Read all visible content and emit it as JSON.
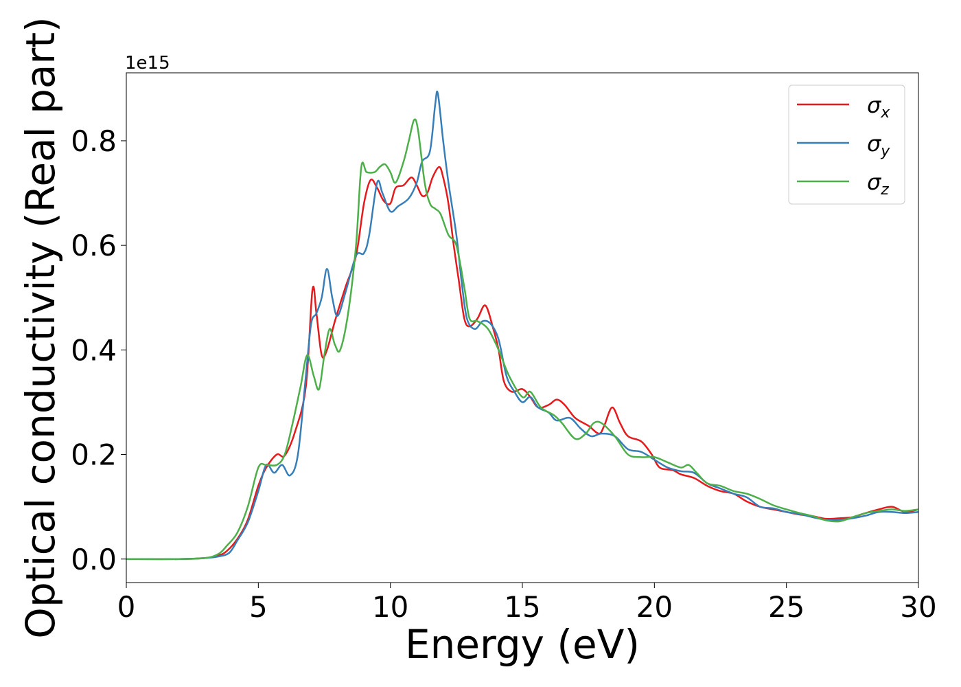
{
  "chart_data": {
    "type": "line",
    "title": "",
    "xlabel": "Energy (eV)",
    "ylabel": "Optical conductivity (Real part)",
    "offset_text": "1e15",
    "xlim": [
      0,
      30
    ],
    "ylim": [
      -0.045,
      0.93
    ],
    "xticks": [
      0,
      5,
      10,
      15,
      20,
      25,
      30
    ],
    "xtick_labels": [
      "0",
      "5",
      "10",
      "15",
      "20",
      "25",
      "30"
    ],
    "yticks": [
      0.0,
      0.2,
      0.4,
      0.6,
      0.8
    ],
    "ytick_labels": [
      "0.0",
      "0.2",
      "0.4",
      "0.6",
      "0.8"
    ],
    "grid": false,
    "legend_position": "top-right",
    "series": [
      {
        "name": "σx",
        "legend_symbol": "σ",
        "legend_subscript": "x",
        "color": "#e41a1c",
        "points": [
          [
            0,
            0.0
          ],
          [
            2,
            0.0
          ],
          [
            3,
            0.002
          ],
          [
            3.5,
            0.007
          ],
          [
            3.8,
            0.015
          ],
          [
            4.2,
            0.038
          ],
          [
            4.6,
            0.075
          ],
          [
            5,
            0.14
          ],
          [
            5.3,
            0.175
          ],
          [
            5.7,
            0.2
          ],
          [
            6,
            0.198
          ],
          [
            6.4,
            0.245
          ],
          [
            6.8,
            0.33
          ],
          [
            7.05,
            0.515
          ],
          [
            7.2,
            0.47
          ],
          [
            7.4,
            0.39
          ],
          [
            7.6,
            0.4
          ],
          [
            7.9,
            0.455
          ],
          [
            8.3,
            0.52
          ],
          [
            8.7,
            0.58
          ],
          [
            9,
            0.68
          ],
          [
            9.25,
            0.725
          ],
          [
            9.5,
            0.71
          ],
          [
            9.75,
            0.685
          ],
          [
            10,
            0.68
          ],
          [
            10.2,
            0.71
          ],
          [
            10.5,
            0.715
          ],
          [
            10.8,
            0.73
          ],
          [
            11,
            0.715
          ],
          [
            11.2,
            0.695
          ],
          [
            11.4,
            0.7
          ],
          [
            11.6,
            0.73
          ],
          [
            11.85,
            0.75
          ],
          [
            12,
            0.73
          ],
          [
            12.2,
            0.68
          ],
          [
            12.4,
            0.6
          ],
          [
            12.6,
            0.53
          ],
          [
            12.8,
            0.46
          ],
          [
            13,
            0.445
          ],
          [
            13.3,
            0.46
          ],
          [
            13.6,
            0.485
          ],
          [
            13.9,
            0.44
          ],
          [
            14.1,
            0.4
          ],
          [
            14.3,
            0.34
          ],
          [
            14.6,
            0.32
          ],
          [
            15,
            0.325
          ],
          [
            15.3,
            0.31
          ],
          [
            15.6,
            0.29
          ],
          [
            16,
            0.295
          ],
          [
            16.3,
            0.305
          ],
          [
            16.6,
            0.295
          ],
          [
            17,
            0.27
          ],
          [
            17.5,
            0.255
          ],
          [
            17.9,
            0.24
          ],
          [
            18.1,
            0.255
          ],
          [
            18.4,
            0.29
          ],
          [
            18.7,
            0.26
          ],
          [
            19,
            0.235
          ],
          [
            19.5,
            0.225
          ],
          [
            19.9,
            0.2
          ],
          [
            20.2,
            0.175
          ],
          [
            20.7,
            0.17
          ],
          [
            21,
            0.162
          ],
          [
            21.5,
            0.155
          ],
          [
            22,
            0.14
          ],
          [
            22.5,
            0.13
          ],
          [
            23,
            0.125
          ],
          [
            23.5,
            0.11
          ],
          [
            24,
            0.1
          ],
          [
            24.5,
            0.095
          ],
          [
            25,
            0.09
          ],
          [
            25.5,
            0.085
          ],
          [
            26,
            0.082
          ],
          [
            26.5,
            0.077
          ],
          [
            27,
            0.078
          ],
          [
            27.5,
            0.08
          ],
          [
            28,
            0.088
          ],
          [
            28.5,
            0.095
          ],
          [
            29,
            0.1
          ],
          [
            29.5,
            0.09
          ],
          [
            30,
            0.095
          ]
        ]
      },
      {
        "name": "σy",
        "legend_symbol": "σ",
        "legend_subscript": "y",
        "color": "#377eb8",
        "points": [
          [
            0,
            0.0
          ],
          [
            2,
            0.0
          ],
          [
            3,
            0.002
          ],
          [
            3.5,
            0.005
          ],
          [
            3.9,
            0.012
          ],
          [
            4.2,
            0.035
          ],
          [
            4.6,
            0.07
          ],
          [
            5,
            0.13
          ],
          [
            5.3,
            0.18
          ],
          [
            5.6,
            0.165
          ],
          [
            5.9,
            0.18
          ],
          [
            6.2,
            0.16
          ],
          [
            6.5,
            0.2
          ],
          [
            6.8,
            0.35
          ],
          [
            7,
            0.45
          ],
          [
            7.2,
            0.47
          ],
          [
            7.4,
            0.5
          ],
          [
            7.6,
            0.555
          ],
          [
            7.8,
            0.5
          ],
          [
            8,
            0.465
          ],
          [
            8.3,
            0.51
          ],
          [
            8.7,
            0.58
          ],
          [
            9,
            0.585
          ],
          [
            9.2,
            0.62
          ],
          [
            9.5,
            0.72
          ],
          [
            9.7,
            0.7
          ],
          [
            10,
            0.665
          ],
          [
            10.3,
            0.675
          ],
          [
            10.7,
            0.69
          ],
          [
            11,
            0.72
          ],
          [
            11.2,
            0.76
          ],
          [
            11.5,
            0.78
          ],
          [
            11.7,
            0.87
          ],
          [
            11.8,
            0.89
          ],
          [
            12,
            0.8
          ],
          [
            12.2,
            0.72
          ],
          [
            12.5,
            0.62
          ],
          [
            12.7,
            0.53
          ],
          [
            12.9,
            0.46
          ],
          [
            13.2,
            0.44
          ],
          [
            13.5,
            0.455
          ],
          [
            13.8,
            0.45
          ],
          [
            14.1,
            0.42
          ],
          [
            14.4,
            0.35
          ],
          [
            14.7,
            0.32
          ],
          [
            15,
            0.3
          ],
          [
            15.3,
            0.31
          ],
          [
            15.6,
            0.29
          ],
          [
            16,
            0.28
          ],
          [
            16.3,
            0.265
          ],
          [
            16.8,
            0.27
          ],
          [
            17.2,
            0.25
          ],
          [
            17.6,
            0.235
          ],
          [
            18,
            0.24
          ],
          [
            18.5,
            0.235
          ],
          [
            19,
            0.21
          ],
          [
            19.5,
            0.205
          ],
          [
            20,
            0.19
          ],
          [
            20.5,
            0.175
          ],
          [
            21,
            0.168
          ],
          [
            21.5,
            0.165
          ],
          [
            22,
            0.145
          ],
          [
            22.5,
            0.135
          ],
          [
            23,
            0.125
          ],
          [
            23.5,
            0.118
          ],
          [
            24,
            0.1
          ],
          [
            24.5,
            0.097
          ],
          [
            25,
            0.09
          ],
          [
            25.5,
            0.086
          ],
          [
            26,
            0.08
          ],
          [
            26.5,
            0.075
          ],
          [
            27,
            0.075
          ],
          [
            27.5,
            0.078
          ],
          [
            28,
            0.083
          ],
          [
            28.5,
            0.09
          ],
          [
            29,
            0.09
          ],
          [
            29.5,
            0.088
          ],
          [
            30,
            0.09
          ]
        ]
      },
      {
        "name": "σz",
        "legend_symbol": "σ",
        "legend_subscript": "z",
        "color": "#4daf4a",
        "points": [
          [
            0,
            0.0
          ],
          [
            2,
            0.0
          ],
          [
            3,
            0.002
          ],
          [
            3.5,
            0.01
          ],
          [
            3.8,
            0.025
          ],
          [
            4.2,
            0.05
          ],
          [
            4.6,
            0.1
          ],
          [
            5,
            0.175
          ],
          [
            5.3,
            0.18
          ],
          [
            5.7,
            0.18
          ],
          [
            6,
            0.2
          ],
          [
            6.3,
            0.26
          ],
          [
            6.6,
            0.33
          ],
          [
            6.85,
            0.39
          ],
          [
            7.1,
            0.35
          ],
          [
            7.3,
            0.325
          ],
          [
            7.5,
            0.39
          ],
          [
            7.7,
            0.44
          ],
          [
            7.9,
            0.41
          ],
          [
            8.1,
            0.4
          ],
          [
            8.4,
            0.47
          ],
          [
            8.7,
            0.6
          ],
          [
            8.9,
            0.75
          ],
          [
            9.1,
            0.74
          ],
          [
            9.4,
            0.74
          ],
          [
            9.6,
            0.75
          ],
          [
            9.8,
            0.755
          ],
          [
            10,
            0.74
          ],
          [
            10.2,
            0.72
          ],
          [
            10.5,
            0.76
          ],
          [
            10.7,
            0.8
          ],
          [
            10.9,
            0.84
          ],
          [
            11.05,
            0.82
          ],
          [
            11.3,
            0.72
          ],
          [
            11.5,
            0.68
          ],
          [
            11.7,
            0.67
          ],
          [
            11.9,
            0.66
          ],
          [
            12.2,
            0.62
          ],
          [
            12.5,
            0.6
          ],
          [
            12.8,
            0.52
          ],
          [
            13,
            0.46
          ],
          [
            13.3,
            0.455
          ],
          [
            13.7,
            0.44
          ],
          [
            14.1,
            0.4
          ],
          [
            14.5,
            0.35
          ],
          [
            15,
            0.31
          ],
          [
            15.3,
            0.32
          ],
          [
            15.7,
            0.29
          ],
          [
            16.2,
            0.275
          ],
          [
            16.5,
            0.26
          ],
          [
            17,
            0.23
          ],
          [
            17.4,
            0.24
          ],
          [
            17.7,
            0.26
          ],
          [
            18,
            0.26
          ],
          [
            18.5,
            0.235
          ],
          [
            19,
            0.2
          ],
          [
            19.5,
            0.195
          ],
          [
            20,
            0.195
          ],
          [
            20.5,
            0.185
          ],
          [
            21,
            0.175
          ],
          [
            21.3,
            0.18
          ],
          [
            21.6,
            0.165
          ],
          [
            22,
            0.145
          ],
          [
            22.5,
            0.14
          ],
          [
            23,
            0.13
          ],
          [
            23.5,
            0.125
          ],
          [
            24,
            0.115
          ],
          [
            24.5,
            0.103
          ],
          [
            25,
            0.095
          ],
          [
            25.5,
            0.088
          ],
          [
            26,
            0.082
          ],
          [
            26.5,
            0.074
          ],
          [
            27,
            0.072
          ],
          [
            27.5,
            0.08
          ],
          [
            28,
            0.088
          ],
          [
            28.5,
            0.092
          ],
          [
            29,
            0.095
          ],
          [
            29.5,
            0.092
          ],
          [
            30,
            0.095
          ]
        ]
      }
    ]
  }
}
